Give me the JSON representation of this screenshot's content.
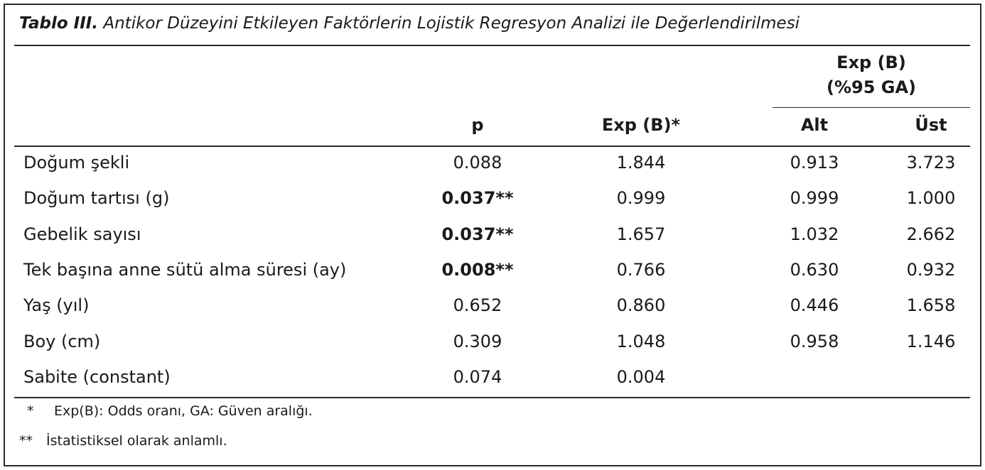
{
  "title": {
    "prefix": "Tablo III.",
    "text": "Antikor Düzeyini Etkileyen Faktörlerin Lojistik Regresyon Analizi ile Değerlendirilmesi"
  },
  "headers": {
    "group_line1": "Exp (B)",
    "group_line2": "(%95 GA)",
    "p": "p",
    "exp": "Exp (B)*",
    "alt": "Alt",
    "ust": "Üst"
  },
  "rows": [
    {
      "label": "Doğum şekli",
      "p": "0.088",
      "p_bold": false,
      "exp": "1.844",
      "alt": "0.913",
      "ust": "3.723"
    },
    {
      "label": "Doğum tartısı (g)",
      "p": "0.037**",
      "p_bold": true,
      "exp": "0.999",
      "alt": "0.999",
      "ust": "1.000"
    },
    {
      "label": "Gebelik sayısı",
      "p": "0.037**",
      "p_bold": true,
      "exp": "1.657",
      "alt": "1.032",
      "ust": "2.662"
    },
    {
      "label": "Tek başına anne sütü alma süresi (ay)",
      "p": "0.008**",
      "p_bold": true,
      "exp": "0.766",
      "alt": "0.630",
      "ust": "0.932"
    },
    {
      "label": "Yaş (yıl)",
      "p": "0.652",
      "p_bold": false,
      "exp": "0.860",
      "alt": "0.446",
      "ust": "1.658"
    },
    {
      "label": "Boy (cm)",
      "p": "0.309",
      "p_bold": false,
      "exp": "1.048",
      "alt": "0.958",
      "ust": "1.146"
    },
    {
      "label": "Sabite (constant)",
      "p": "0.074",
      "p_bold": false,
      "exp": "0.004",
      "alt": "",
      "ust": ""
    }
  ],
  "footnotes": [
    {
      "mark": "*",
      "text": "Exp(B): Odds oranı, GA: Güven aralığı."
    },
    {
      "mark": "**",
      "text": "İstatistiksel olarak anlamlı."
    }
  ]
}
